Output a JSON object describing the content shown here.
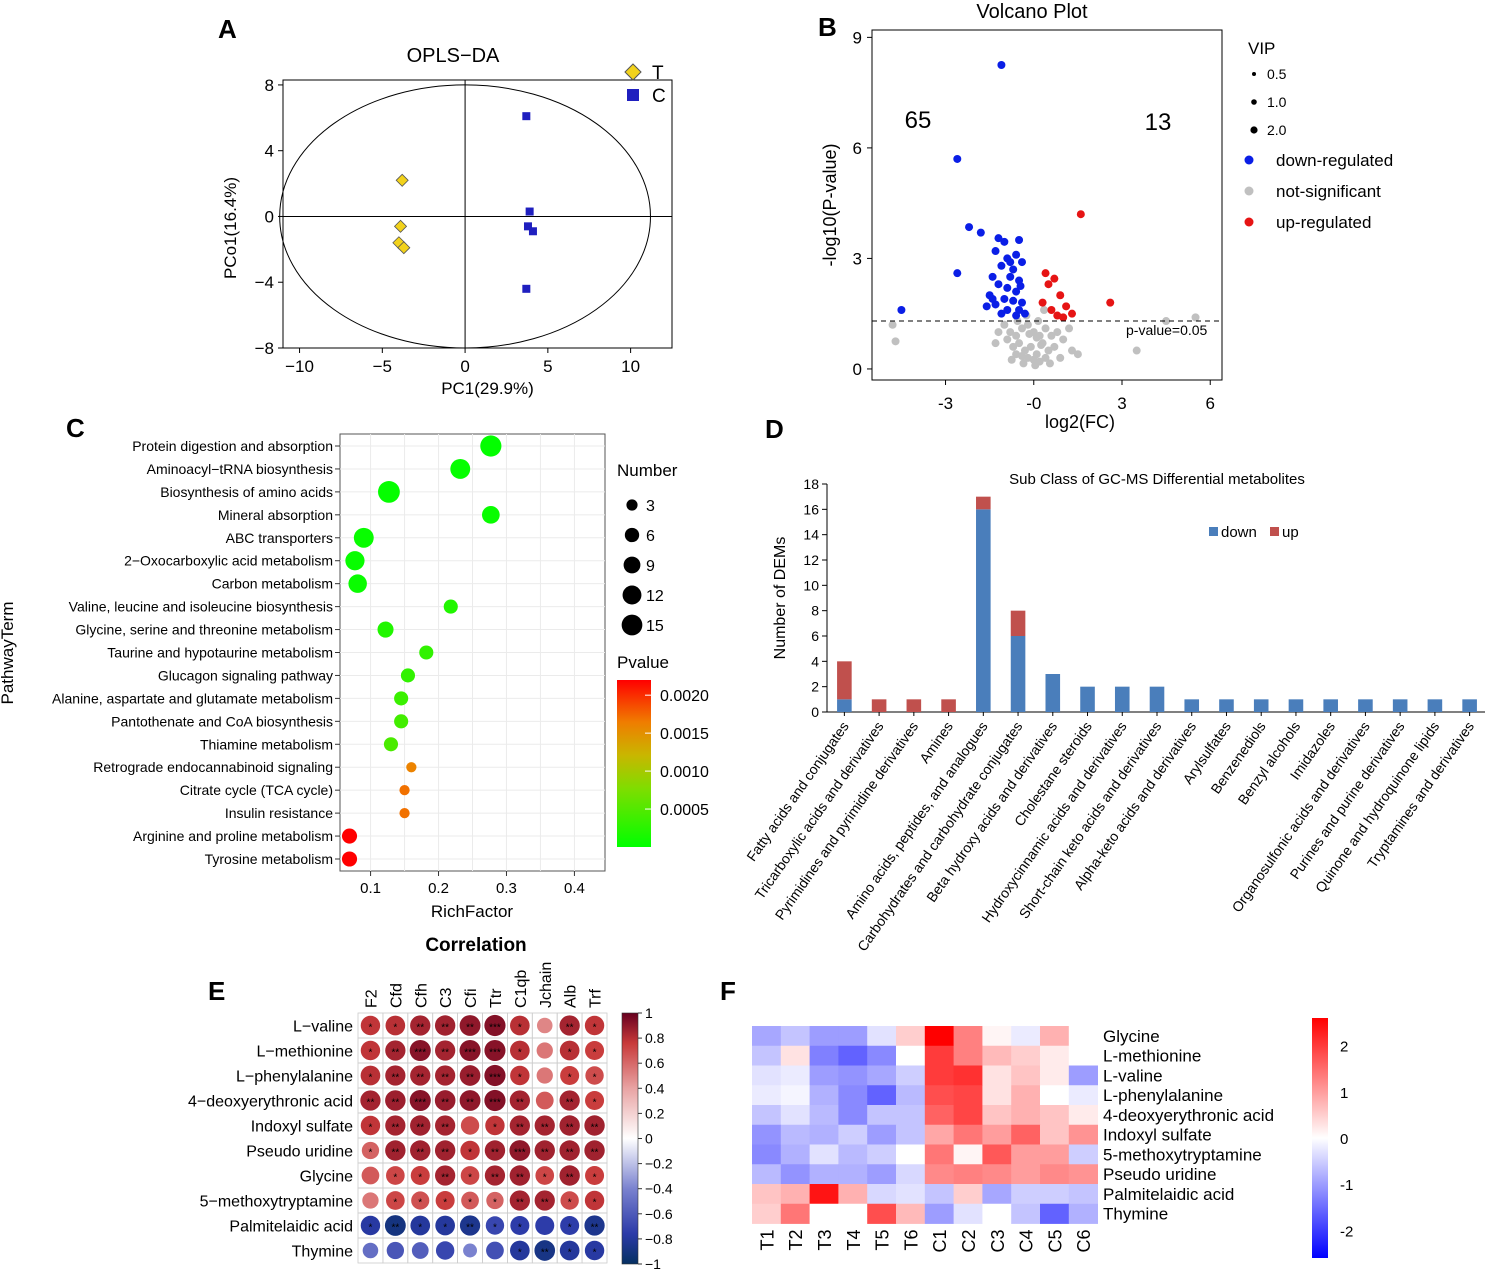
{
  "panel_labels": [
    "A",
    "B",
    "C",
    "D",
    "E",
    "F"
  ],
  "chart_data": [
    {
      "panel": "A",
      "type": "scatter",
      "title": "OPLS−DA",
      "xlabel": "PC1(29.9%)",
      "ylabel": "PCo1(16.4%)",
      "xlim": [
        -11,
        12.5
      ],
      "ylim": [
        -8,
        8.3
      ],
      "xticks": [
        -10,
        -5,
        0,
        5,
        10
      ],
      "yticks": [
        -8,
        -4,
        0,
        4,
        8
      ],
      "ellipse": {
        "rx": 11.2,
        "ry": 8.0
      },
      "series": [
        {
          "name": "T",
          "marker": "diamond",
          "color": "#f2d21b",
          "points": [
            [
              -3.8,
              2.2
            ],
            [
              -3.9,
              -0.6
            ],
            [
              -4.0,
              -1.6
            ],
            [
              -3.7,
              -1.9
            ]
          ]
        },
        {
          "name": "C",
          "marker": "square",
          "color": "#1f1fbf",
          "points": [
            [
              3.7,
              6.1
            ],
            [
              3.9,
              0.3
            ],
            [
              3.8,
              -0.6
            ],
            [
              4.1,
              -0.9
            ],
            [
              3.7,
              -4.4
            ]
          ]
        }
      ]
    },
    {
      "panel": "B",
      "type": "scatter",
      "title": "Volcano Plot",
      "xlabel": "log2(FC)",
      "ylabel": "-log10(P-value)",
      "xlim": [
        -5.5,
        6.4
      ],
      "ylim": [
        -0.3,
        9.2
      ],
      "xticks": [
        -3,
        0,
        3,
        6
      ],
      "yticks": [
        0,
        3,
        6,
        9
      ],
      "xtick_labels": [
        "-3",
        "-0",
        "3",
        "6"
      ],
      "threshold": {
        "y": 1.3,
        "label": "p-value=0.05"
      },
      "count_down": "65",
      "count_up": "13",
      "vip_legend": {
        "title": "VIP",
        "levels": [
          "0.5",
          "1.0",
          "2.0"
        ]
      },
      "legend": [
        "down-regulated",
        "not-significant",
        "up-regulated"
      ],
      "colors": {
        "down": "#0a1ee6",
        "ns": "#c0c0c0",
        "up": "#e61414"
      },
      "points_down": [
        [
          -1.1,
          8.25
        ],
        [
          -2.6,
          5.7
        ],
        [
          -2.2,
          3.85
        ],
        [
          -1.2,
          3.55
        ],
        [
          -1.8,
          3.7
        ],
        [
          -1.0,
          3.45
        ],
        [
          -0.5,
          3.5
        ],
        [
          -0.6,
          3.1
        ],
        [
          -0.9,
          3.0
        ],
        [
          -1.3,
          3.2
        ],
        [
          -2.6,
          2.6
        ],
        [
          -1.1,
          2.8
        ],
        [
          -0.7,
          2.7
        ],
        [
          -0.4,
          2.9
        ],
        [
          -1.4,
          2.5
        ],
        [
          -0.8,
          2.5
        ],
        [
          -0.5,
          2.4
        ],
        [
          -1.2,
          2.3
        ],
        [
          -0.9,
          2.2
        ],
        [
          -0.6,
          2.1
        ],
        [
          -1.5,
          2.0
        ],
        [
          -1.0,
          1.9
        ],
        [
          -0.7,
          1.85
        ],
        [
          -0.4,
          1.8
        ],
        [
          -1.3,
          1.75
        ],
        [
          -1.6,
          1.7
        ],
        [
          -0.9,
          1.6
        ],
        [
          -0.5,
          1.6
        ],
        [
          -1.1,
          1.5
        ],
        [
          -0.6,
          1.45
        ],
        [
          -4.5,
          1.6
        ],
        [
          -0.3,
          1.5
        ],
        [
          -1.4,
          1.9
        ],
        [
          -0.8,
          2.9
        ],
        [
          -0.45,
          2.25
        ]
      ],
      "points_up": [
        [
          1.6,
          4.2
        ],
        [
          0.4,
          2.6
        ],
        [
          0.7,
          2.45
        ],
        [
          0.9,
          2.0
        ],
        [
          2.6,
          1.8
        ],
        [
          1.1,
          1.7
        ],
        [
          0.6,
          1.6
        ],
        [
          1.3,
          1.5
        ],
        [
          0.8,
          1.45
        ],
        [
          0.5,
          2.3
        ],
        [
          1.0,
          1.4
        ],
        [
          0.3,
          1.8
        ]
      ],
      "points_ns": [
        [
          -4.8,
          1.2
        ],
        [
          -4.7,
          0.75
        ],
        [
          4.5,
          1.3
        ],
        [
          3.5,
          0.5
        ],
        [
          5.5,
          1.4
        ],
        [
          1.5,
          0.4
        ],
        [
          -1.0,
          1.2
        ],
        [
          -0.8,
          1.0
        ],
        [
          -0.6,
          0.9
        ],
        [
          -0.4,
          1.1
        ],
        [
          -0.2,
          1.2
        ],
        [
          0.0,
          1.0
        ],
        [
          0.2,
          0.9
        ],
        [
          0.4,
          1.1
        ],
        [
          0.6,
          0.9
        ],
        [
          0.8,
          1.0
        ],
        [
          -0.5,
          0.7
        ],
        [
          -0.3,
          0.5
        ],
        [
          -0.1,
          0.6
        ],
        [
          0.1,
          0.4
        ],
        [
          0.3,
          0.7
        ],
        [
          0.5,
          0.5
        ],
        [
          -0.7,
          0.6
        ],
        [
          -0.9,
          0.8
        ],
        [
          0.7,
          0.6
        ],
        [
          1.0,
          0.8
        ],
        [
          -0.2,
          0.3
        ],
        [
          0.0,
          0.25
        ],
        [
          0.2,
          0.2
        ],
        [
          -0.4,
          0.35
        ],
        [
          0.4,
          0.3
        ],
        [
          -0.6,
          0.4
        ],
        [
          1.2,
          1.1
        ],
        [
          -1.2,
          1.0
        ],
        [
          0.1,
          0.85
        ],
        [
          -0.15,
          0.95
        ],
        [
          0.25,
          0.65
        ],
        [
          -0.35,
          0.15
        ],
        [
          0.55,
          0.15
        ],
        [
          -0.75,
          0.25
        ],
        [
          1.3,
          0.5
        ],
        [
          0.9,
          0.3
        ],
        [
          -1.3,
          0.7
        ],
        [
          -0.55,
          1.3
        ],
        [
          0.15,
          1.3
        ],
        [
          0.35,
          1.6
        ],
        [
          -0.25,
          1.45
        ],
        [
          0.05,
          0.1
        ]
      ]
    },
    {
      "panel": "C",
      "type": "scatter",
      "xlabel": "RichFactor",
      "ylabel": "PathwayTerm",
      "xlim": [
        0.055,
        0.445
      ],
      "xticks": [
        0.1,
        0.2,
        0.3,
        0.4
      ],
      "xtick_labels": [
        "0.1",
        "0.2",
        "0.3",
        "0.4"
      ],
      "size_legend_title": "Number",
      "size_levels": [
        3,
        6,
        9,
        12,
        15
      ],
      "color_legend_title": "Pvalue",
      "color_ticks": [
        "0.0020",
        "0.0015",
        "0.0010",
        "0.0005"
      ],
      "pathways": [
        {
          "name": "Protein digestion and absorption",
          "rich": 0.277,
          "count": 14,
          "p": 2e-05
        },
        {
          "name": "Aminoacyl−tRNA biosynthesis",
          "rich": 0.232,
          "count": 12,
          "p": 3e-05
        },
        {
          "name": "Biosynthesis of amino acids",
          "rich": 0.127,
          "count": 15,
          "p": 3e-05
        },
        {
          "name": "Mineral absorption",
          "rich": 0.277,
          "count": 9,
          "p": 5e-05
        },
        {
          "name": "ABC transporters",
          "rich": 0.09,
          "count": 12,
          "p": 5e-05
        },
        {
          "name": "2−Oxocarboxylic acid metabolism",
          "rich": 0.077,
          "count": 11,
          "p": 5e-05
        },
        {
          "name": "Carbon metabolism",
          "rich": 0.081,
          "count": 10,
          "p": 6e-05
        },
        {
          "name": "Valine, leucine and isoleucine biosynthesis",
          "rich": 0.218,
          "count": 5,
          "p": 0.0002
        },
        {
          "name": "Glycine, serine and threonine metabolism",
          "rich": 0.122,
          "count": 7,
          "p": 0.0002
        },
        {
          "name": "Taurine and hypotaurine metabolism",
          "rich": 0.182,
          "count": 5,
          "p": 0.0003
        },
        {
          "name": "Glucagon signaling pathway",
          "rich": 0.155,
          "count": 5,
          "p": 0.0003
        },
        {
          "name": "Alanine, aspartate and glutamate metabolism",
          "rich": 0.145,
          "count": 5,
          "p": 0.00035
        },
        {
          "name": "Pantothenate and CoA biosynthesis",
          "rich": 0.145,
          "count": 5,
          "p": 0.0004
        },
        {
          "name": "Thiamine metabolism",
          "rich": 0.13,
          "count": 5,
          "p": 0.00045
        },
        {
          "name": "Retrograde endocannabinoid signaling",
          "rich": 0.16,
          "count": 2,
          "p": 0.0016
        },
        {
          "name": "Citrate cycle (TCA cycle)",
          "rich": 0.15,
          "count": 2,
          "p": 0.0017
        },
        {
          "name": "Insulin resistance",
          "rich": 0.15,
          "count": 2,
          "p": 0.0017
        },
        {
          "name": "Arginine and proline metabolism",
          "rich": 0.069,
          "count": 6,
          "p": 0.0022
        },
        {
          "name": "Tyrosine metabolism",
          "rich": 0.069,
          "count": 6,
          "p": 0.0022
        }
      ]
    },
    {
      "panel": "D",
      "type": "bar",
      "title": "Sub Class of GC-MS Differential metabolites",
      "ylabel": "Number of DEMs",
      "ylim": [
        0,
        18
      ],
      "yticks": [
        0,
        2,
        4,
        6,
        8,
        10,
        12,
        14,
        16,
        18
      ],
      "legend": [
        "down",
        "up"
      ],
      "colors": {
        "down": "#4a7ebb",
        "up": "#c0504d"
      },
      "categories": [
        "Fatty acids and conjugates",
        "Tricarboxylic acids and derivatives",
        "Pyrimidines and pyrimidine derivatives",
        "Amines",
        "Amino acids, peptides, and analogues",
        "Carbohydrates and carbohydrate conjugates",
        "Beta hydroxy acids and derivatives",
        "Cholestane steroids",
        "Hydroxycinnamic acids and derivatives",
        "Short-chain keto acids and derivatives",
        "Alpha-keto acids and derivatives",
        "Arylsulfates",
        "Benzenediols",
        "Benzyl alcohols",
        "Imidazoles",
        "Organosulfonic acids and derivatives",
        "Purines and purine derivatives",
        "Quinone and hydroquinone lipids",
        "Tryptamines and derivatives"
      ],
      "series": [
        {
          "name": "down",
          "values": [
            1,
            0,
            0,
            0,
            16,
            6,
            3,
            2,
            2,
            2,
            1,
            1,
            1,
            1,
            1,
            1,
            1,
            1,
            1
          ]
        },
        {
          "name": "up",
          "values": [
            3,
            1,
            1,
            1,
            1,
            2,
            0,
            0,
            0,
            0,
            0,
            0,
            0,
            0,
            0,
            0,
            0,
            0,
            0
          ]
        }
      ]
    },
    {
      "panel": "E",
      "type": "heatmap",
      "title": "Correlation",
      "columns": [
        "F2",
        "Cfd",
        "Cfh",
        "C3",
        "Cfi",
        "Ttr",
        "C1qb",
        "Jchain",
        "Alb",
        "Trf"
      ],
      "rows": [
        "L−valine",
        "L−methionine",
        "L−phenylalanine",
        "4−deoxyerythronic acid",
        "Indoxyl sulfate",
        "Pseudo uridine",
        "Glycine",
        "5−methoxytryptamine",
        "Palmitelaidic acid",
        "Thymine"
      ],
      "colorbar_ticks": [
        "1",
        "0.8",
        "0.6",
        "0.4",
        "0.2",
        "0",
        "−0.2",
        "−0.4",
        "−0.6",
        "−0.8",
        "−1"
      ],
      "values": [
        [
          0.78,
          0.8,
          0.85,
          0.86,
          0.9,
          0.93,
          0.8,
          0.5,
          0.85,
          0.78
        ],
        [
          0.78,
          0.85,
          0.92,
          0.85,
          0.92,
          0.92,
          0.8,
          0.55,
          0.8,
          0.75
        ],
        [
          0.8,
          0.85,
          0.85,
          0.85,
          0.88,
          0.93,
          0.78,
          0.55,
          0.75,
          0.7
        ],
        [
          0.85,
          0.87,
          0.92,
          0.88,
          0.9,
          0.93,
          0.85,
          0.65,
          0.85,
          0.75
        ],
        [
          0.78,
          0.85,
          0.86,
          0.85,
          0.7,
          0.78,
          0.85,
          0.85,
          0.86,
          0.86
        ],
        [
          0.62,
          0.86,
          0.86,
          0.86,
          0.78,
          0.86,
          0.9,
          0.86,
          0.86,
          0.86
        ],
        [
          0.65,
          0.72,
          0.75,
          0.85,
          0.72,
          0.85,
          0.86,
          0.72,
          0.86,
          0.75
        ],
        [
          0.55,
          0.72,
          0.68,
          0.75,
          0.65,
          0.62,
          0.85,
          0.85,
          0.7,
          0.78
        ],
        [
          -0.78,
          -0.9,
          -0.8,
          -0.8,
          -0.85,
          -0.7,
          -0.75,
          -0.75,
          -0.75,
          -0.85
        ],
        [
          -0.5,
          -0.62,
          -0.58,
          -0.7,
          -0.4,
          -0.65,
          -0.8,
          -0.88,
          -0.8,
          -0.78
        ]
      ],
      "stars": [
        [
          "*",
          "*",
          "**",
          "**",
          "**",
          "***",
          "*",
          "",
          "**",
          "*"
        ],
        [
          "*",
          "**",
          "***",
          "**",
          "***",
          "***",
          "*",
          "",
          "*",
          "*"
        ],
        [
          "*",
          "**",
          "**",
          "**",
          "**",
          "***",
          "*",
          "",
          "*",
          "*"
        ],
        [
          "**",
          "**",
          "***",
          "**",
          "**",
          "***",
          "**",
          "",
          "**",
          "*"
        ],
        [
          "*",
          "**",
          "**",
          "**",
          "",
          "*",
          "**",
          "**",
          "**",
          "**"
        ],
        [
          "*",
          "**",
          "**",
          "**",
          "*",
          "**",
          "***",
          "**",
          "**",
          "**"
        ],
        [
          "",
          "*",
          "*",
          "**",
          "*",
          "**",
          "**",
          "*",
          "**",
          "*"
        ],
        [
          "",
          "*",
          "*",
          "*",
          "*",
          "*",
          "**",
          "**",
          "*",
          "*"
        ],
        [
          "*",
          "**",
          "*",
          "*",
          "**",
          "*",
          "*",
          "",
          "*",
          "**"
        ],
        [
          "",
          "",
          "",
          "",
          "",
          "",
          "*",
          "**",
          "*",
          "*"
        ]
      ]
    },
    {
      "panel": "F",
      "type": "heatmap",
      "columns": [
        "T1",
        "T2",
        "T3",
        "T4",
        "T5",
        "T6",
        "C1",
        "C2",
        "C3",
        "C4",
        "C5",
        "C6"
      ],
      "rows": [
        "Glycine",
        "L-methionine",
        "L-valine",
        "L-phenylalanine",
        "4-deoxyerythronic acid",
        "Indoxyl sulfate",
        "5-methoxytryptamine",
        "Pseudo uridine",
        "Palmitelaidic acid",
        "Thymine"
      ],
      "colorbar_ticks": [
        "2",
        "1",
        "0",
        "-1",
        "-2"
      ],
      "vlim": [
        -2.6,
        2.6
      ],
      "values": [
        [
          -0.9,
          -0.6,
          -1.0,
          -1.0,
          -0.3,
          0.5,
          2.6,
          1.3,
          0.1,
          -0.2,
          0.8,
          0.0
        ],
        [
          -0.6,
          0.3,
          -1.3,
          -1.6,
          -1.2,
          0.0,
          2.0,
          1.3,
          0.7,
          0.5,
          0.2,
          0.0
        ],
        [
          -0.3,
          -0.2,
          -1.0,
          -1.1,
          -0.9,
          -0.5,
          2.0,
          2.1,
          0.3,
          0.6,
          0.2,
          -1.0
        ],
        [
          -0.2,
          -0.1,
          -0.8,
          -1.2,
          -1.6,
          -0.7,
          1.8,
          1.9,
          0.3,
          0.8,
          0.0,
          -0.2
        ],
        [
          -0.6,
          -0.3,
          -0.7,
          -1.2,
          -0.6,
          -0.6,
          1.6,
          1.9,
          0.6,
          0.8,
          0.6,
          0.2
        ],
        [
          -1.1,
          -0.7,
          -0.8,
          -0.5,
          -1.0,
          -0.6,
          0.9,
          1.4,
          1.0,
          1.6,
          0.6,
          1.1
        ],
        [
          -1.2,
          -0.8,
          -0.3,
          -0.7,
          -0.5,
          0.0,
          1.4,
          0.1,
          1.7,
          1.0,
          1.0,
          -0.5
        ],
        [
          -0.7,
          -1.1,
          -0.8,
          -0.8,
          -1.0,
          -0.4,
          1.2,
          1.3,
          1.2,
          1.0,
          1.2,
          1.1
        ],
        [
          0.6,
          0.8,
          2.4,
          0.8,
          -0.4,
          -0.3,
          -0.6,
          0.5,
          -0.9,
          -0.5,
          -0.5,
          -0.6
        ],
        [
          0.5,
          1.4,
          0.0,
          0.0,
          1.8,
          0.7,
          -1.0,
          -0.3,
          0.0,
          -0.6,
          -1.6,
          -0.8
        ]
      ]
    }
  ]
}
